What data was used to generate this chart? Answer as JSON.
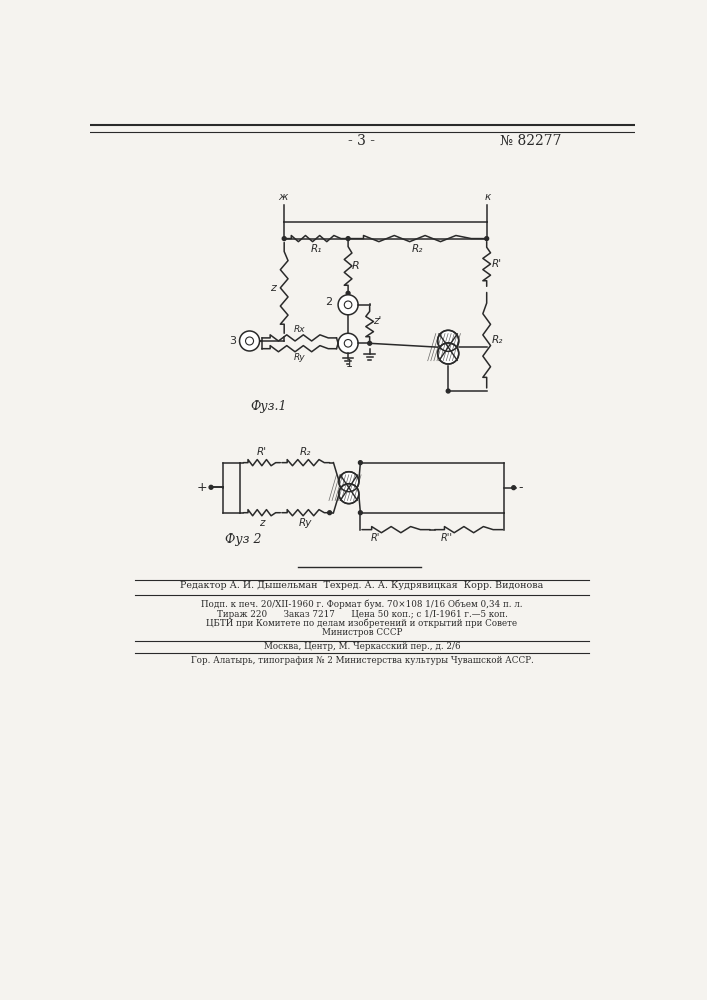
{
  "title_page": "- 3 -",
  "patent_num": "№ 82277",
  "fig1_label": "Фуз.1",
  "fig2_label": "Фуз 2",
  "footer_line1": "Редактор А. И. Дышельман  Техред. А. А. Кудрявицкая  Корр. Видонова",
  "footer_line2": "Подп. к печ. 20/XII-1960 г. Формат бум. 70×108 1/16 Объем 0,34 п. л.",
  "footer_line3": "Тираж 220      Заказ 7217      Цена 50 коп.; с 1/I-1961 г.—5 коп.",
  "footer_line4": "ЦБТИ при Комитете по делам изобретений и открытий при Совете",
  "footer_line5": "Министров СССР",
  "footer_line6": "Москва, Центр, М. Черкасский пер., д. 2/6",
  "footer_line7": "Гор. Алатырь, типография № 2 Министерства культуры Чувашской АССР.",
  "bg_color": "#f5f3ef",
  "line_color": "#2a2a2a",
  "text_color": "#2a2a2a"
}
